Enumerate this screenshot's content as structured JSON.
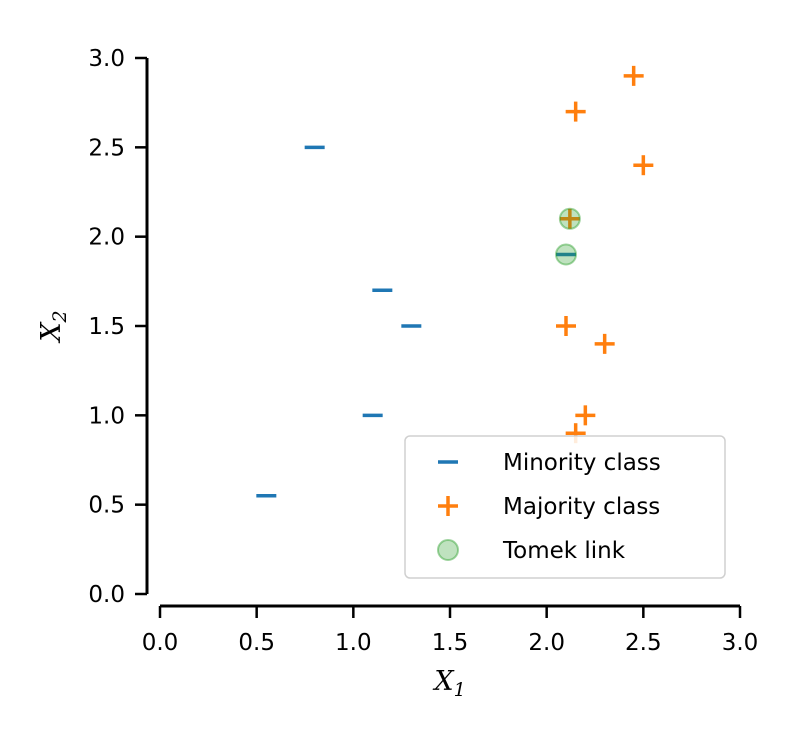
{
  "chart_data": {
    "type": "scatter",
    "title": "",
    "xlabel": "X",
    "xlabel_sub": "1",
    "ylabel": "X",
    "ylabel_sub": "2",
    "xlim": [
      0.0,
      3.0
    ],
    "ylim": [
      0.0,
      3.0
    ],
    "x_ticks": [
      "0.0",
      "0.5",
      "1.0",
      "1.5",
      "2.0",
      "2.5",
      "3.0"
    ],
    "y_ticks": [
      "0.0",
      "0.5",
      "1.0",
      "1.5",
      "2.0",
      "2.5",
      "3.0"
    ],
    "grid": false,
    "legend_position": "lower-right",
    "series": [
      {
        "name": "Minority class",
        "marker": "minus",
        "color": "#1f77b4",
        "points": [
          {
            "x": 0.8,
            "y": 2.5
          },
          {
            "x": 1.15,
            "y": 1.7
          },
          {
            "x": 1.3,
            "y": 1.5
          },
          {
            "x": 1.1,
            "y": 1.0
          },
          {
            "x": 0.55,
            "y": 0.55
          },
          {
            "x": 2.1,
            "y": 1.9
          }
        ]
      },
      {
        "name": "Majority class",
        "marker": "plus",
        "color": "#ff7f0e",
        "points": [
          {
            "x": 2.45,
            "y": 2.9
          },
          {
            "x": 2.15,
            "y": 2.7
          },
          {
            "x": 2.5,
            "y": 2.4
          },
          {
            "x": 2.12,
            "y": 2.1
          },
          {
            "x": 2.1,
            "y": 1.5
          },
          {
            "x": 2.3,
            "y": 1.4
          },
          {
            "x": 2.2,
            "y": 1.0
          },
          {
            "x": 2.15,
            "y": 0.9
          }
        ]
      },
      {
        "name": "Tomek link",
        "marker": "circle",
        "color": "#2ca02c",
        "points": [
          {
            "x": 2.12,
            "y": 2.1
          },
          {
            "x": 2.1,
            "y": 1.9
          }
        ]
      }
    ]
  }
}
